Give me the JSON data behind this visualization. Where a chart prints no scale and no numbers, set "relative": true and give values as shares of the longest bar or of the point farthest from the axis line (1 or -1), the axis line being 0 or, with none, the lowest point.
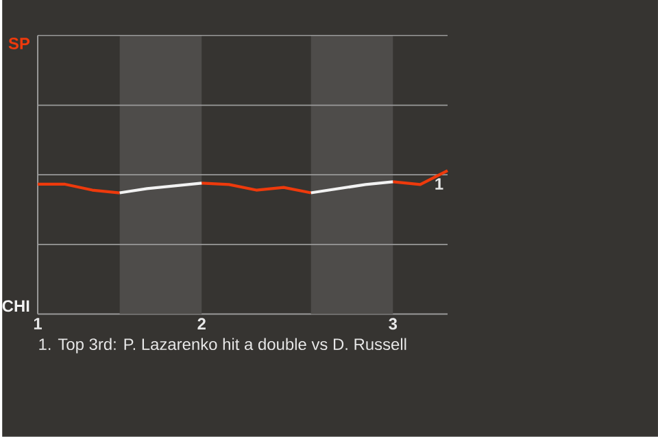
{
  "chart_data": {
    "type": "line",
    "relative": true,
    "categories": [
      "1",
      null,
      null,
      null,
      null,
      null,
      "2",
      null,
      null,
      null,
      null,
      null,
      null,
      "3",
      null,
      null
    ],
    "series": [
      {
        "name": "SP",
        "color": "#ee3a0c",
        "values": [
          0.905,
          0.905,
          0.864,
          0.845,
          null,
          null,
          0.913,
          0.903,
          0.864,
          0.883,
          0.845,
          null,
          null,
          0.922,
          0.903,
          1
        ]
      },
      {
        "name": "CHI",
        "color": "#f2f2f2",
        "values": [
          null,
          null,
          null,
          0.845,
          0.874,
          0.893,
          0.913,
          null,
          null,
          null,
          0.845,
          0.874,
          0.903,
          0.922,
          null,
          null
        ]
      }
    ],
    "legend": "left",
    "marker": "none",
    "line_style": "solid",
    "ref_lines": [
      {
        "axis": "y",
        "value": 0.485,
        "color": "#9a9a9a"
      },
      {
        "axis": "y",
        "value": 0.971,
        "color": "#9a9a9a"
      },
      {
        "axis": "y",
        "value": 1.456,
        "color": "#9a9a9a"
      },
      {
        "axis": "y",
        "value": 1.942,
        "color": "#9a9a9a"
      }
    ],
    "annotations": [
      {
        "text": "1",
        "y": 1
      },
      "1. Top 3rd: P. Lazarenko hit a double vs D. Russell"
    ]
  }
}
